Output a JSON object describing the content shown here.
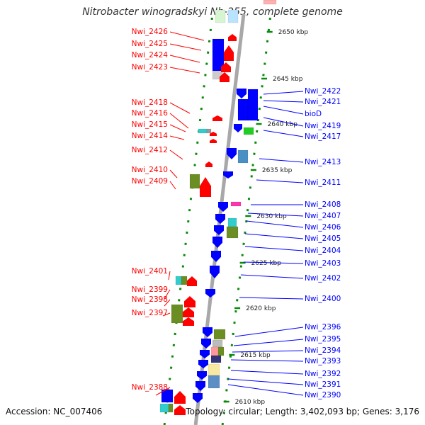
{
  "title": "Nitrobacter winogradskyi Nb-255, complete genome",
  "footer": {
    "accession": "Accession: NC_007406",
    "topology": "Topology: circular; Length: 3,402,093 bp; Genes: 3,176"
  },
  "colors": {
    "forward": "#ff0000",
    "reverse": "#0000ff",
    "backbone": "#a8a8a8",
    "ticks": "#0a8a0a"
  },
  "scale_ticks": [
    "2650 kbp",
    "2645 kbp",
    "2640 kbp",
    "2635 kbp",
    "2630 kbp",
    "2625 kbp",
    "2620 kbp",
    "2615 kbp",
    "2610 kbp"
  ],
  "genes_left": [
    "Nwi_2426",
    "Nwi_2425",
    "Nwi_2424",
    "Nwi_2423",
    "Nwi_2418",
    "Nwi_2416",
    "Nwi_2415",
    "Nwi_2414",
    "Nwi_2412",
    "Nwi_2410",
    "Nwi_2409",
    "Nwi_2401",
    "Nwi_2399",
    "Nwi_2398",
    "Nwi_2397",
    "Nwi_2388"
  ],
  "genes_right": [
    "Nwi_2422",
    "Nwi_2421",
    "bioD",
    "Nwi_2419",
    "Nwi_2417",
    "Nwi_2413",
    "Nwi_2411",
    "Nwi_2408",
    "Nwi_2407",
    "Nwi_2406",
    "Nwi_2405",
    "Nwi_2404",
    "Nwi_2403",
    "Nwi_2402",
    "Nwi_2400",
    "Nwi_2396",
    "Nwi_2395",
    "Nwi_2394",
    "Nwi_2393",
    "Nwi_2392",
    "Nwi_2391",
    "Nwi_2390"
  ]
}
